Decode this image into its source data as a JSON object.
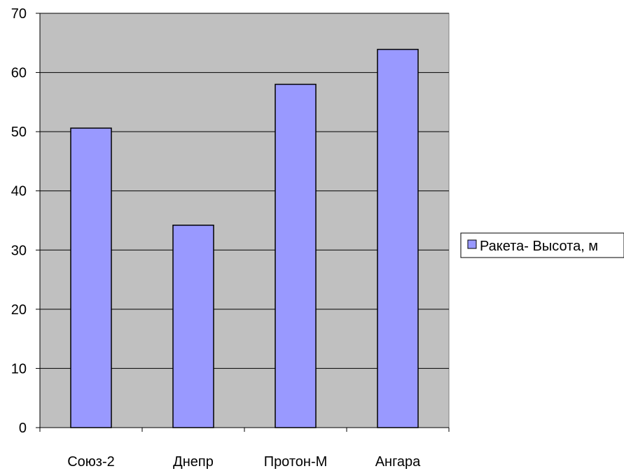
{
  "chart_data": {
    "type": "bar",
    "categories": [
      "Союз-2",
      "Днепр",
      "Протон-М",
      "Ангара"
    ],
    "series": [
      {
        "name": "Ракета- Высота, м",
        "values": [
          50.6,
          34.2,
          58.0,
          63.9
        ],
        "color": "#9999FF"
      }
    ],
    "y_ticks": [
      "0",
      "10",
      "20",
      "30",
      "40",
      "50",
      "60",
      "70"
    ],
    "ylim": [
      0,
      70
    ],
    "grid": true,
    "legend_position": "right",
    "plot_background": "#C0C0C0"
  }
}
